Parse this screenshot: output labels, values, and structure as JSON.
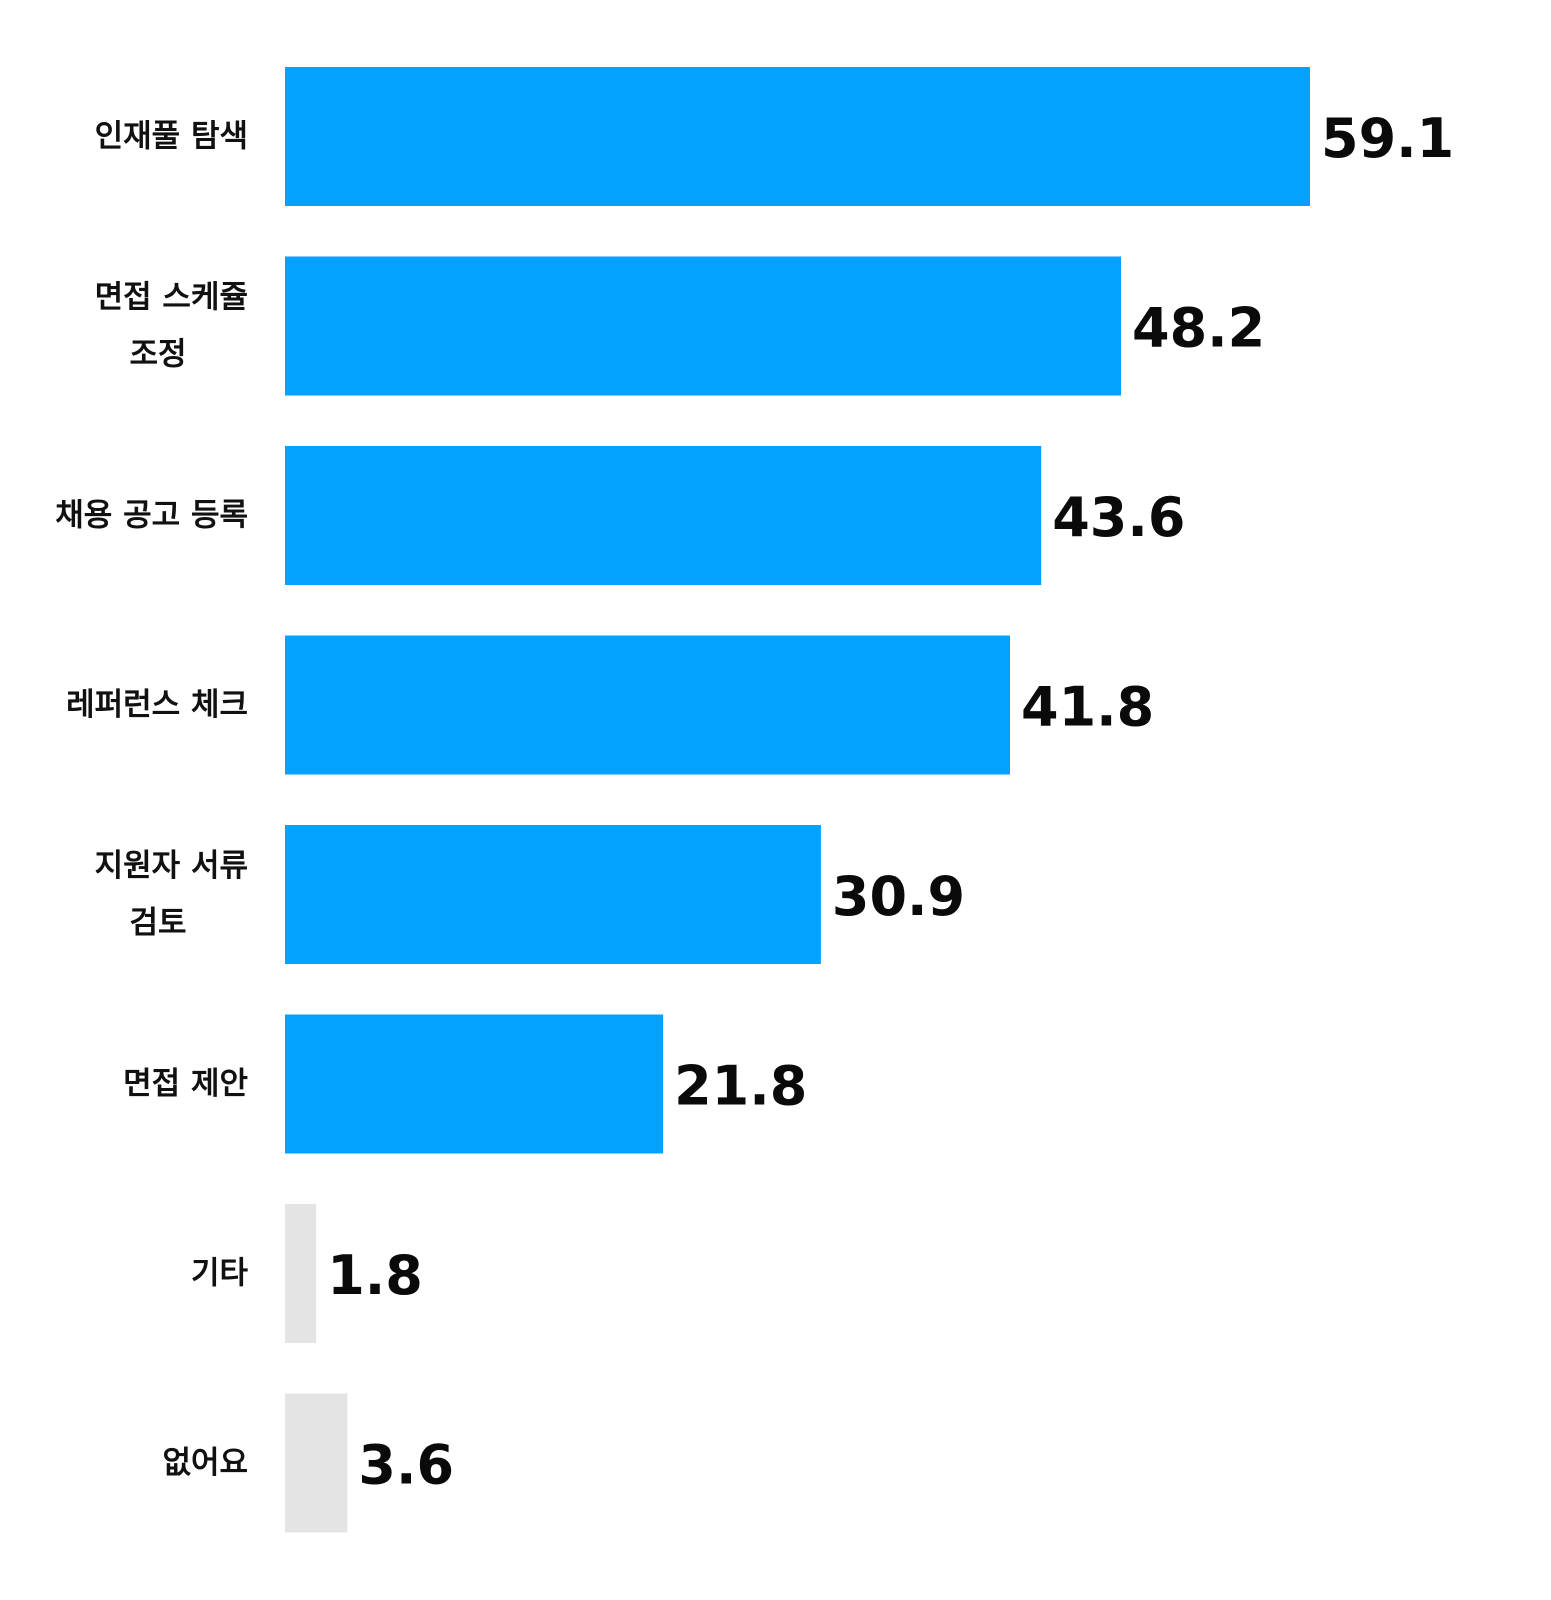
{
  "chart_data": {
    "type": "bar",
    "orientation": "horizontal",
    "title": "",
    "xlabel": "",
    "ylabel": "",
    "xlim": [
      0,
      59.1
    ],
    "grid": false,
    "legend": "none",
    "categories": [
      "인재풀 탐색",
      "면접 스케쥴 조정",
      "채용 공고 등록",
      "레퍼런스 체크",
      "지원자 서류 검토",
      "면접 제안",
      "기타",
      "없어요"
    ],
    "category_lines": [
      [
        "인재풀 탐색"
      ],
      [
        "면접 스케쥴",
        "조정"
      ],
      [
        "채용 공고 등록"
      ],
      [
        "레퍼런스 체크"
      ],
      [
        "지원자 서류",
        "검토"
      ],
      [
        "면접 제안"
      ],
      [
        "기타"
      ],
      [
        "없어요"
      ]
    ],
    "values": [
      59.1,
      48.2,
      43.6,
      41.8,
      30.9,
      21.8,
      1.8,
      3.6
    ],
    "value_labels": [
      "59.1",
      "48.2",
      "43.6",
      "41.8",
      "30.9",
      "21.8",
      "1.8",
      "3.6"
    ],
    "bar_colors": [
      "#03a2ff",
      "#03a2ff",
      "#03a2ff",
      "#03a2ff",
      "#03a2ff",
      "#03a2ff",
      "#e4e4e4",
      "#e4e4e4"
    ]
  }
}
